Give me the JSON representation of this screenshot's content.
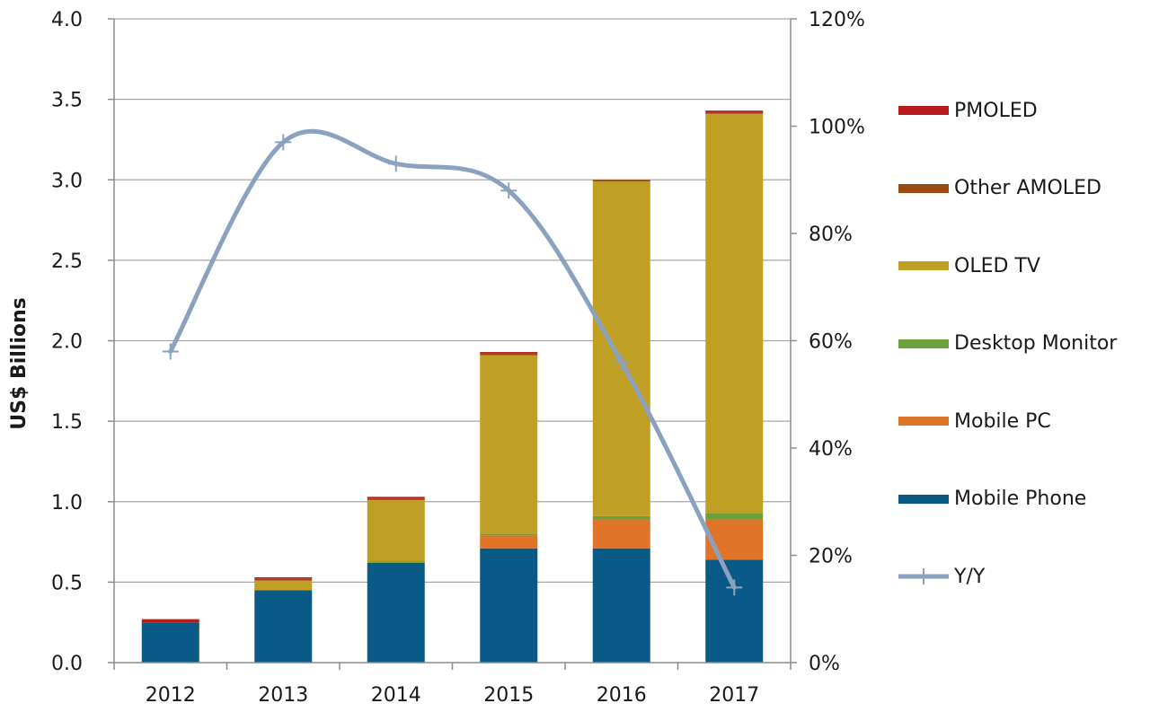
{
  "chart_data": {
    "type": "bar",
    "stacked": true,
    "categories": [
      "2012",
      "2013",
      "2014",
      "2015",
      "2016",
      "2017"
    ],
    "ylabel": "US$ Billions",
    "ylim": [
      0,
      4.0
    ],
    "yticks": [
      "0.0",
      "0.5",
      "1.0",
      "1.5",
      "2.0",
      "2.5",
      "3.0",
      "3.5",
      "4.0"
    ],
    "y2lim": [
      0,
      120
    ],
    "y2ticks": [
      "0%",
      "20%",
      "40%",
      "60%",
      "80%",
      "100%",
      "120%"
    ],
    "grid": true,
    "legend_position": "right",
    "series": [
      {
        "name": "Mobile Phone",
        "color": "#0a5a88",
        "values": [
          0.25,
          0.45,
          0.62,
          0.71,
          0.71,
          0.64
        ]
      },
      {
        "name": "Mobile PC",
        "color": "#e07428",
        "values": [
          0.0,
          0.0,
          0.0,
          0.08,
          0.18,
          0.25
        ]
      },
      {
        "name": "Desktop Monitor",
        "color": "#6ca03a",
        "values": [
          0.0,
          0.0,
          0.01,
          0.01,
          0.02,
          0.04
        ]
      },
      {
        "name": "OLED TV",
        "color": "#bfa024",
        "values": [
          0.0,
          0.06,
          0.38,
          1.11,
          2.08,
          2.48
        ]
      },
      {
        "name": "Other AMOLED",
        "color": "#9b4a10",
        "values": [
          0.0,
          0.01,
          0.01,
          0.01,
          0.01,
          0.01
        ]
      },
      {
        "name": "PMOLED",
        "color": "#b81c1c",
        "values": [
          0.02,
          0.01,
          0.01,
          0.01,
          0.0,
          0.01
        ]
      }
    ],
    "line_series": {
      "name": "Y/Y",
      "color": "#8aa2c0",
      "axis": "right",
      "values": [
        58,
        97,
        93,
        88,
        56,
        14
      ]
    }
  }
}
